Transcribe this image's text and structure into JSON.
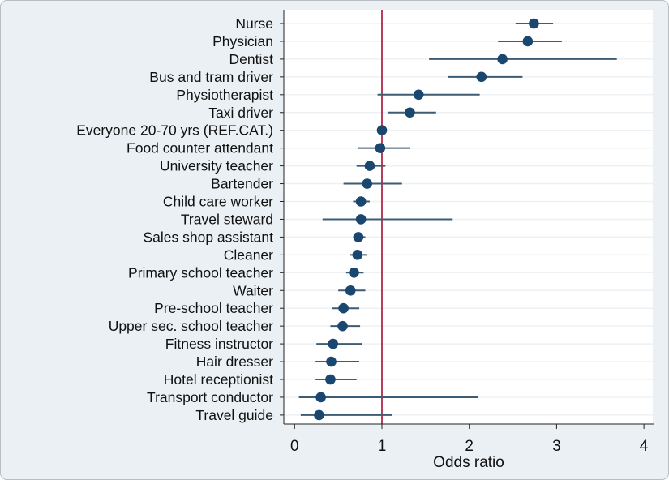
{
  "chart_data": {
    "type": "forest",
    "xlabel": "Odds ratio",
    "ylabel": "",
    "xlim": [
      0,
      4
    ],
    "xticks": [
      0,
      1,
      2,
      3,
      4
    ],
    "reference_line": 1,
    "grid": true,
    "colors": {
      "point": "#1a476f",
      "ci": "#3e5b74",
      "reference": "#b0284a",
      "background": "#eaf0f3"
    },
    "rows": [
      {
        "label": "Nurse",
        "or": 2.74,
        "lo": 2.53,
        "hi": 2.96
      },
      {
        "label": "Physician",
        "or": 2.67,
        "lo": 2.33,
        "hi": 3.06
      },
      {
        "label": "Dentist",
        "or": 2.38,
        "lo": 1.54,
        "hi": 3.69
      },
      {
        "label": "Bus and tram driver",
        "or": 2.14,
        "lo": 1.76,
        "hi": 2.61
      },
      {
        "label": "Physiotherapist",
        "or": 1.42,
        "lo": 0.95,
        "hi": 2.12
      },
      {
        "label": "Taxi driver",
        "or": 1.32,
        "lo": 1.07,
        "hi": 1.62
      },
      {
        "label": "Everyone 20-70 yrs (REF.CAT.)",
        "or": 1.0,
        "lo": 1.0,
        "hi": 1.0
      },
      {
        "label": "Food counter attendant",
        "or": 0.98,
        "lo": 0.72,
        "hi": 1.32
      },
      {
        "label": "University teacher",
        "or": 0.86,
        "lo": 0.71,
        "hi": 1.04
      },
      {
        "label": "Bartender",
        "or": 0.83,
        "lo": 0.56,
        "hi": 1.23
      },
      {
        "label": "Child care worker",
        "or": 0.76,
        "lo": 0.67,
        "hi": 0.86
      },
      {
        "label": "Travel steward",
        "or": 0.76,
        "lo": 0.32,
        "hi": 1.81
      },
      {
        "label": "Sales shop assistant",
        "or": 0.73,
        "lo": 0.67,
        "hi": 0.81
      },
      {
        "label": "Cleaner",
        "or": 0.72,
        "lo": 0.63,
        "hi": 0.83
      },
      {
        "label": "Primary school teacher",
        "or": 0.68,
        "lo": 0.59,
        "hi": 0.79
      },
      {
        "label": "Waiter",
        "or": 0.64,
        "lo": 0.5,
        "hi": 0.81
      },
      {
        "label": "Pre-school teacher",
        "or": 0.56,
        "lo": 0.43,
        "hi": 0.74
      },
      {
        "label": "Upper sec. school teacher",
        "or": 0.55,
        "lo": 0.41,
        "hi": 0.75
      },
      {
        "label": "Fitness instructor",
        "or": 0.44,
        "lo": 0.25,
        "hi": 0.77
      },
      {
        "label": "Hair dresser",
        "or": 0.42,
        "lo": 0.24,
        "hi": 0.74
      },
      {
        "label": "Hotel receptionist",
        "or": 0.41,
        "lo": 0.24,
        "hi": 0.71
      },
      {
        "label": "Transport conductor",
        "or": 0.3,
        "lo": 0.05,
        "hi": 2.1
      },
      {
        "label": "Travel guide",
        "or": 0.28,
        "lo": 0.07,
        "hi": 1.12
      }
    ]
  }
}
